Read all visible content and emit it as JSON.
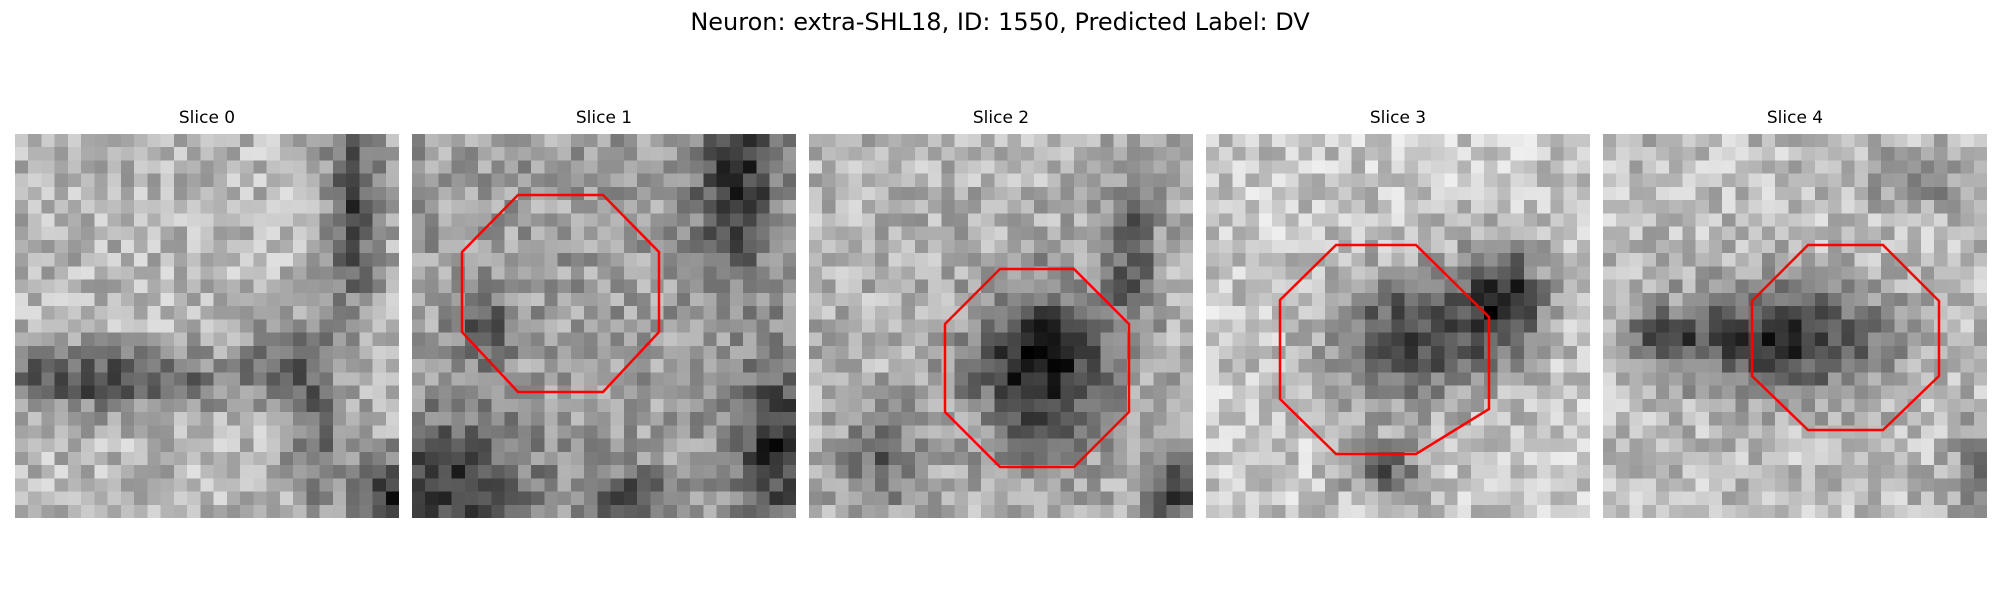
{
  "title": "Neuron: extra-SHL18, ID: 1550, Predicted Label: DV",
  "outline_color": "#ff0000",
  "panels": [
    {
      "title": "Slice 0",
      "has_outline": false
    },
    {
      "title": "Slice 1",
      "has_outline": true
    },
    {
      "title": "Slice 2",
      "has_outline": true
    },
    {
      "title": "Slice 3",
      "has_outline": true
    },
    {
      "title": "Slice 4",
      "has_outline": true
    }
  ]
}
